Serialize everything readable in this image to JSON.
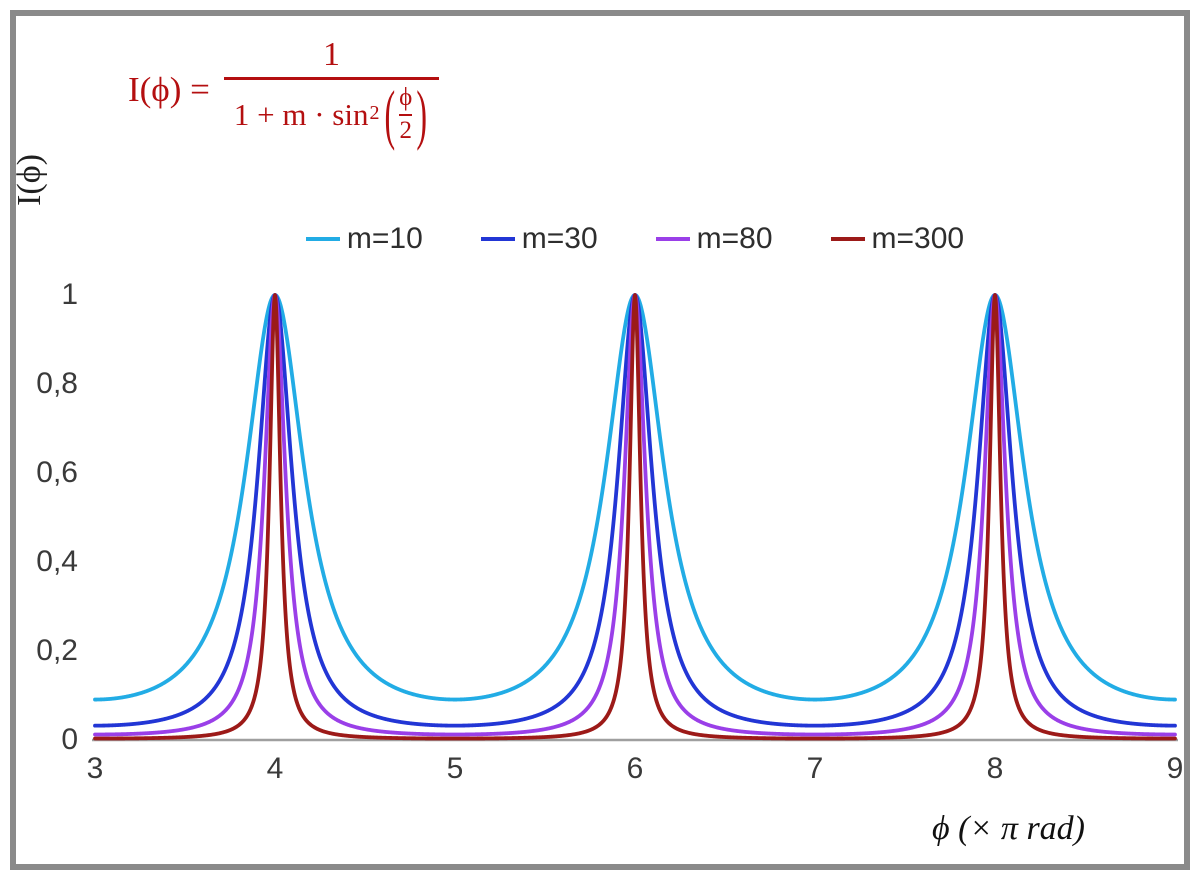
{
  "formula": {
    "color": "#b40f10",
    "lhs": "I(ϕ) =",
    "numerator": "1",
    "den_text": "1 + m · sin",
    "den_sup": "2",
    "paren_open": "(",
    "paren_close": ")",
    "inner_num": "ϕ",
    "inner_den": "2"
  },
  "axes": {
    "y_label": "I(ϕ)",
    "x_label": "ϕ  (× π rad)",
    "x_ticks": [
      "3",
      "4",
      "5",
      "6",
      "7",
      "8",
      "9"
    ],
    "y_ticks": [
      "0",
      "0,2",
      "0,4",
      "0,6",
      "0,8",
      "1"
    ]
  },
  "legend": {
    "items": [
      {
        "label": "m=10",
        "color": "#22ace5"
      },
      {
        "label": "m=30",
        "color": "#2236d5"
      },
      {
        "label": "m=80",
        "color": "#9a3fe8"
      },
      {
        "label": "m=300",
        "color": "#9c1a18"
      }
    ]
  },
  "chart_data": {
    "type": "line",
    "title": "",
    "formula": "I(phi) = 1 / (1 + m * sin^2(phi/2)), phi in units of pi rad",
    "xlabel": "ϕ (× π rad)",
    "ylabel": "I(ϕ)",
    "xlim": [
      3,
      9
    ],
    "ylim": [
      0,
      1
    ],
    "x_ticks": [
      3,
      4,
      5,
      6,
      7,
      8,
      9
    ],
    "y_ticks": [
      0,
      0.2,
      0.4,
      0.6,
      0.8,
      1
    ],
    "peaks_at_x": [
      4,
      6,
      8
    ],
    "peak_value": 1,
    "grid": false,
    "legend_position": "top",
    "axis_color": "#9f9f9f",
    "series": [
      {
        "name": "m=10",
        "m": 10,
        "color": "#22ace5",
        "value_at_x3": 0.091
      },
      {
        "name": "m=30",
        "m": 30,
        "color": "#2236d5",
        "value_at_x3": 0.032
      },
      {
        "name": "m=80",
        "m": 80,
        "color": "#9a3fe8",
        "value_at_x3": 0.012
      },
      {
        "name": "m=300",
        "m": 300,
        "color": "#9c1a18",
        "value_at_x3": 0.003
      }
    ]
  }
}
